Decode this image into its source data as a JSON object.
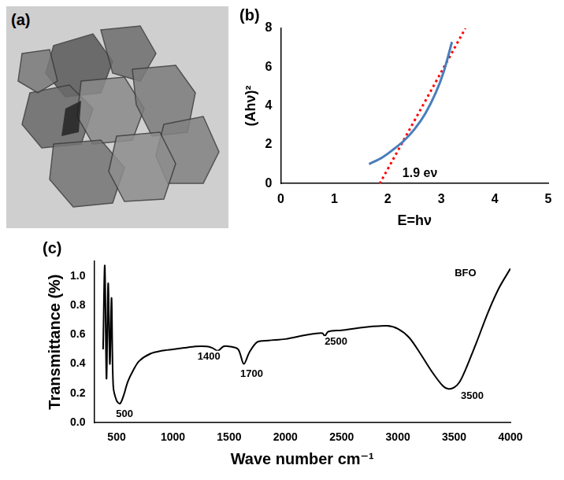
{
  "image_panel": {
    "label": "(a)"
  },
  "chart_data": [
    {
      "type": "line",
      "title": "(b)",
      "x_label": "E=hν",
      "y_label": "(Ahν)²",
      "xlim": [
        0,
        5
      ],
      "xticks": [
        0,
        1,
        2,
        3,
        4,
        5
      ],
      "ylim": [
        0,
        8
      ],
      "yticks": [
        0,
        2,
        4,
        6,
        8
      ],
      "grid": false,
      "series": [
        {
          "color": "#4a7ebb",
          "line_style": "solid",
          "x": [
            1.65,
            1.9,
            2.1,
            2.3,
            2.5,
            2.7,
            2.9,
            3.05,
            3.2
          ],
          "values": [
            1.0,
            1.35,
            1.75,
            2.2,
            2.8,
            3.6,
            4.7,
            5.8,
            7.3
          ]
        },
        {
          "color": "#ff0000",
          "line_style": "dotted",
          "x": [
            1.85,
            3.45
          ],
          "values": [
            0,
            8
          ]
        }
      ],
      "annotations": [
        {
          "text": "1.9 eν",
          "x": 2.6,
          "y": 0.5
        }
      ]
    },
    {
      "type": "line",
      "title": "(c)",
      "x_label": "Wave number cm⁻¹",
      "y_label": "Transmittance (%)",
      "xlim": [
        300,
        4000
      ],
      "xticks": [
        500,
        1000,
        1500,
        2000,
        2500,
        3000,
        3500,
        4000
      ],
      "ylim": [
        0,
        1.1
      ],
      "yticks": [
        {
          "value": 0,
          "label": "0.0"
        },
        0.2,
        0.4,
        0.6,
        0.8,
        {
          "value": 1,
          "label": "1.0"
        }
      ],
      "grid": false,
      "series": [
        {
          "color": "#000000",
          "line_style": "solid",
          "x": [
            380,
            395,
            410,
            425,
            440,
            455,
            470,
            500,
            530,
            560,
            600,
            650,
            700,
            800,
            900,
            1000,
            1100,
            1200,
            1300,
            1350,
            1400,
            1450,
            1500,
            1580,
            1630,
            1680,
            1750,
            1850,
            2000,
            2200,
            2330,
            2350,
            2380,
            2500,
            2700,
            2900,
            3000,
            3100,
            3200,
            3300,
            3400,
            3450,
            3500,
            3550,
            3600,
            3700,
            3800,
            3900,
            4000
          ],
          "values": [
            0.5,
            1.07,
            0.3,
            0.95,
            0.4,
            0.85,
            0.25,
            0.15,
            0.13,
            0.18,
            0.28,
            0.36,
            0.42,
            0.47,
            0.49,
            0.5,
            0.51,
            0.52,
            0.52,
            0.51,
            0.49,
            0.52,
            0.52,
            0.5,
            0.4,
            0.48,
            0.55,
            0.56,
            0.57,
            0.6,
            0.61,
            0.59,
            0.62,
            0.63,
            0.65,
            0.66,
            0.64,
            0.58,
            0.47,
            0.35,
            0.25,
            0.23,
            0.24,
            0.28,
            0.36,
            0.55,
            0.75,
            0.92,
            1.05
          ]
        }
      ],
      "annotations": [
        {
          "text": "500",
          "x": 570,
          "y": 0.06
        },
        {
          "text": "1400",
          "x": 1320,
          "y": 0.45
        },
        {
          "text": "1700",
          "x": 1700,
          "y": 0.33
        },
        {
          "text": "2500",
          "x": 2450,
          "y": 0.55
        },
        {
          "text": "3500",
          "x": 3660,
          "y": 0.18
        },
        {
          "text": "BFO",
          "x": 3600,
          "y": 1.02
        }
      ]
    }
  ]
}
